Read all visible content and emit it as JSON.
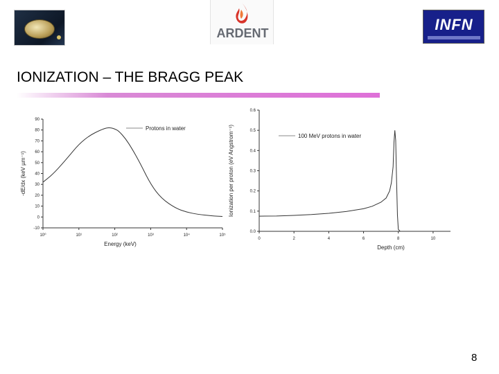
{
  "header": {
    "title": "IONIZATION – THE BRAGG PEAK",
    "logos": {
      "left": "medal-logo",
      "center": "ARDENT",
      "right": "INFN"
    }
  },
  "page_number": "8",
  "colors": {
    "title_rule": "#de70d8",
    "ardent_flame": "#d8342a",
    "infn_background": "#17208a"
  },
  "chart_data": [
    {
      "type": "line",
      "title": "",
      "xlabel": "Energy (keV)",
      "ylabel": "-dE/dx (keV µm⁻¹)",
      "x_scale": "log",
      "xlim": [
        1,
        100000
      ],
      "ylim": [
        -10,
        90
      ],
      "x_ticks": [
        "10⁰",
        "10¹",
        "10²",
        "10³",
        "10⁴",
        "10⁵"
      ],
      "y_ticks": [
        "-10",
        "0",
        "10",
        "20",
        "30",
        "40",
        "50",
        "60",
        "70",
        "80",
        "90"
      ],
      "legend_position": "top-right",
      "series": [
        {
          "name": "Protons in water",
          "x": [
            1,
            2,
            5,
            10,
            20,
            40,
            60,
            80,
            100,
            130,
            200,
            300,
            500,
            1000,
            2000,
            5000,
            10000,
            20000,
            50000,
            100000
          ],
          "y": [
            32,
            40,
            55,
            67,
            75,
            80,
            82,
            82,
            81,
            79,
            72,
            63,
            50,
            30,
            17,
            8,
            4.5,
            2.5,
            1,
            0.5
          ]
        }
      ]
    },
    {
      "type": "line",
      "title": "",
      "xlabel": "Depth (cm)",
      "ylabel": "Ionization per proton (eV Angstrom⁻¹)",
      "xlim": [
        0,
        11
      ],
      "ylim": [
        0,
        0.6
      ],
      "x_ticks": [
        "0",
        "2",
        "4",
        "6",
        "8",
        "10"
      ],
      "y_ticks": [
        "0.0",
        "0.1",
        "0.2",
        "0.3",
        "0.4",
        "0.5",
        "0.6"
      ],
      "legend_position": "top-right",
      "series": [
        {
          "name": "100 MeV protons in water",
          "x": [
            0,
            1,
            2,
            3,
            4,
            5,
            6,
            6.5,
            7,
            7.3,
            7.5,
            7.6,
            7.7,
            7.75,
            7.8,
            7.85,
            7.9,
            7.95,
            8.0,
            8.1
          ],
          "y": [
            0.075,
            0.076,
            0.079,
            0.083,
            0.089,
            0.098,
            0.112,
            0.124,
            0.144,
            0.165,
            0.2,
            0.24,
            0.32,
            0.44,
            0.5,
            0.45,
            0.25,
            0.08,
            0.01,
            0.0
          ]
        }
      ]
    }
  ]
}
